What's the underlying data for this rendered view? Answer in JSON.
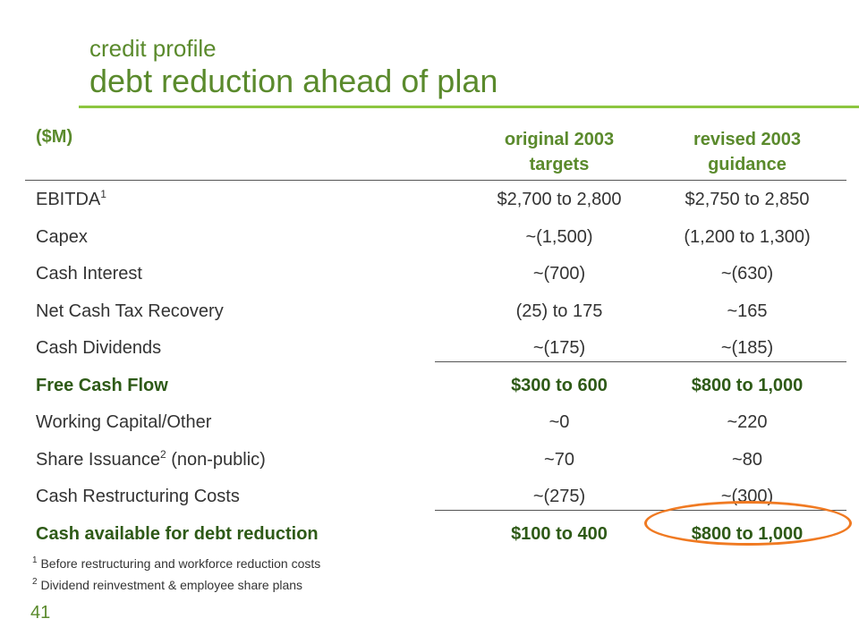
{
  "slide": {
    "subtitle": "credit profile",
    "title": "debt reduction ahead of plan",
    "page_number": "41"
  },
  "table": {
    "unit_header": "($M)",
    "col1_header_line1": "original 2003",
    "col1_header_line2": "targets",
    "col2_header_line1": "revised 2003",
    "col2_header_line2": "guidance",
    "rows": [
      {
        "label": "EBITDA",
        "sup": "1",
        "label_after": "",
        "v1": "$2,700 to 2,800",
        "v2": "$2,750 to 2,850"
      },
      {
        "label": "Capex",
        "sup": "",
        "label_after": "",
        "v1": "~(1,500)",
        "v2": "(1,200 to 1,300)"
      },
      {
        "label": "Cash Interest",
        "sup": "",
        "label_after": "",
        "v1": "~(700)",
        "v2": "~(630)"
      },
      {
        "label": "Net Cash Tax Recovery",
        "sup": "",
        "label_after": "",
        "v1": "(25) to 175",
        "v2": "~165"
      },
      {
        "label": "Cash Dividends",
        "sup": "",
        "label_after": "",
        "v1": "~(175)",
        "v2": "~(185)"
      },
      {
        "label": "Free Cash Flow",
        "sup": "",
        "label_after": "",
        "v1": "$300 to 600",
        "v2": "$800 to 1,000"
      },
      {
        "label": "Working Capital/Other",
        "sup": "",
        "label_after": "",
        "v1": "~0",
        "v2": "~220"
      },
      {
        "label": "Share Issuance",
        "sup": "2",
        "label_after": " (non-public)",
        "v1": "~70",
        "v2": "~80"
      },
      {
        "label": "Cash Restructuring Costs",
        "sup": "",
        "label_after": "",
        "v1": "~(275)",
        "v2": "~(300)"
      },
      {
        "label": "Cash available for debt reduction",
        "sup": "",
        "label_after": "",
        "v1": "$100 to 400",
        "v2": "$800 to 1,000"
      }
    ]
  },
  "footnotes": [
    {
      "mark": "1",
      "text": " Before restructuring and workforce reduction costs"
    },
    {
      "mark": "2",
      "text": " Dividend reinvestment & employee share plans"
    }
  ],
  "colors": {
    "title_green": "#5a8a2c",
    "rule_green": "#8cc63f",
    "highlight_orange": "#f07a22"
  }
}
